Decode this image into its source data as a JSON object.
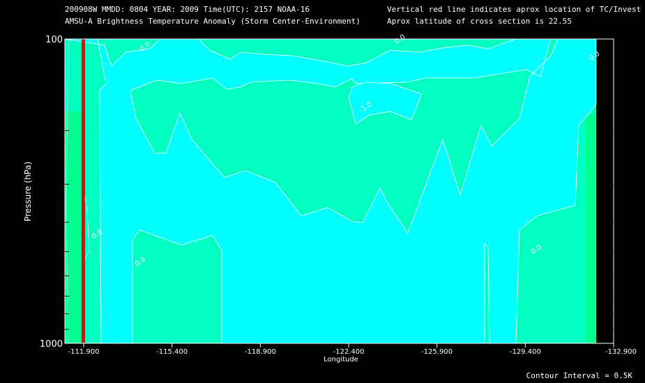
{
  "header": {
    "line1_left": "200908W  MMDD: 0804 YEAR: 2009 Time(UTC): 2157 NOAA-16",
    "line2_left": "AMSU-A Brightness Temperature Anomaly (Storm Center-Environment)",
    "line1_right": "Vertical red line indicates aprox location of TC/Invest",
    "line2_right": "Aprox latitude of cross section is 22.55"
  },
  "footer": {
    "contour_interval": "Contour Interval = 0.5K"
  },
  "chart_data": {
    "type": "heatmap",
    "title": "AMSU-A Brightness Temperature Anomaly (Storm Center-Environment)",
    "xlabel": "Longitude",
    "ylabel": "Pressure (hPa)",
    "x_ticks": [
      "-111.900",
      "-115.400",
      "-118.900",
      "-122.400",
      "-125.900",
      "-129.400",
      "-132.900"
    ],
    "y_ticks": [
      "100",
      "1000"
    ],
    "xlim": [
      -111.9,
      -132.9
    ],
    "ylim": [
      1000,
      100
    ],
    "y_scale": "log",
    "tc_longitude": -111.9,
    "contour_labels": [
      {
        "text": "0.0",
        "lon": -114.2,
        "p": 110
      },
      {
        "text": "0.0",
        "lon": -124.3,
        "p": 104
      },
      {
        "text": "0.0",
        "lon": -132.0,
        "p": 118
      },
      {
        "text": "-1.0",
        "lon": -122.9,
        "p": 175
      },
      {
        "text": "0.0",
        "lon": -112.3,
        "p": 455
      },
      {
        "text": "0.0",
        "lon": -114.0,
        "p": 560
      },
      {
        "text": "0.0",
        "lon": -129.7,
        "p": 510
      }
    ],
    "colors": {
      "band_-1.0_-0.5": "#00FFFF",
      "band_-0.5_0.0": "#00FFFF",
      "band_0.0_0.5": "#00FFC0",
      "band_0.5_1.0": "#00FF90",
      "tc_line": "#FF0000",
      "contour_line": "#FFFFFF"
    }
  }
}
